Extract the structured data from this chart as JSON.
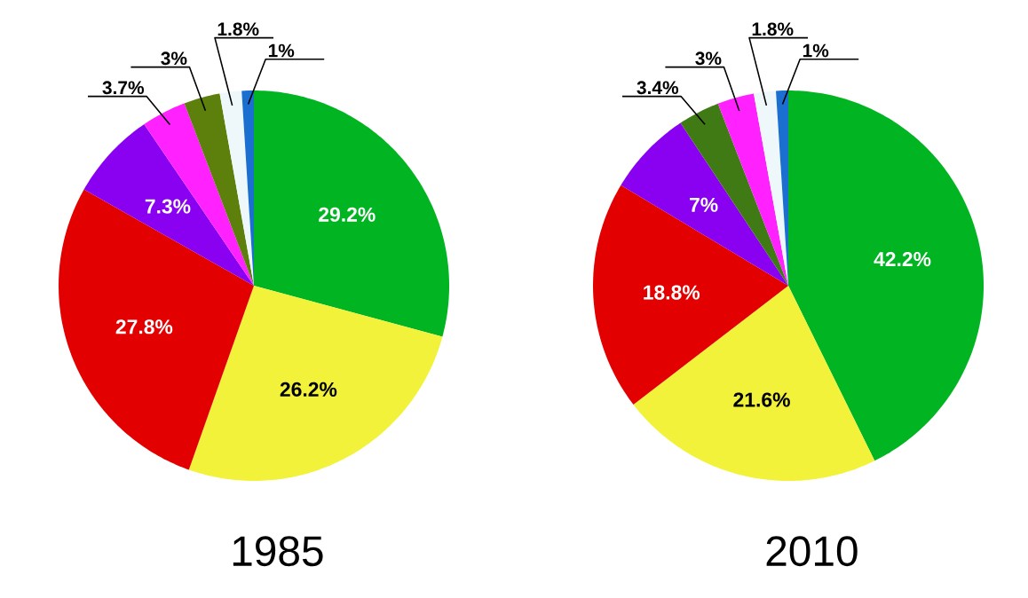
{
  "chart_data": [
    {
      "type": "pie",
      "title": "1985",
      "categories": [
        null,
        null,
        null,
        null,
        null,
        null,
        null,
        null
      ],
      "values": [
        29.2,
        26.2,
        27.8,
        7.3,
        3.7,
        3,
        1.8,
        1
      ],
      "value_labels": [
        "29.2%",
        "26.2%",
        "27.8%",
        "7.3%",
        "3.7%",
        "3%",
        "1.8%",
        "1%"
      ],
      "colors": [
        "#00b521",
        "#f2f23a",
        "#e30000",
        "#8a00f0",
        "#ff22ff",
        "#5d7f0b",
        "#eef8fb",
        "#1a6fd0"
      ]
    },
    {
      "type": "pie",
      "title": "2010",
      "categories": [
        null,
        null,
        null,
        null,
        null,
        null,
        null,
        null
      ],
      "values": [
        42.2,
        21.6,
        18.8,
        7,
        3.4,
        3,
        1.8,
        1
      ],
      "value_labels": [
        "42.2%",
        "21.6%",
        "18.8%",
        "7%",
        "3.4%",
        "3%",
        "1.8%",
        "1%"
      ],
      "colors": [
        "#00b521",
        "#f2f23a",
        "#e30000",
        "#8a00f0",
        "#3f7a14",
        "#ff22ff",
        "#eef8fb",
        "#1a6fd0"
      ]
    }
  ]
}
